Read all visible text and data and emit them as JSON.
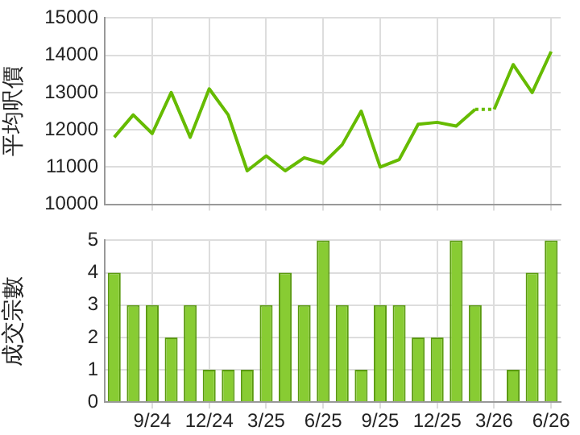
{
  "chart_data": [
    {
      "type": "line",
      "ylabel": "平均呎價",
      "categories": [
        null,
        null,
        null,
        null,
        null,
        null,
        null,
        null,
        null,
        null,
        null,
        null,
        null,
        null,
        null,
        null,
        null,
        null,
        null,
        null,
        null,
        null,
        null,
        null
      ],
      "series": [
        {
          "color": "#66bb00",
          "values": [
            11800,
            12400,
            11900,
            13000,
            11800,
            13100,
            12400,
            10900,
            11300,
            10900,
            11250,
            11100,
            11600,
            12500,
            11000,
            11200,
            12150,
            12200,
            12100,
            12550,
            null,
            null,
            null,
            null
          ]
        },
        {
          "color": "#66bb00",
          "line_style": "dotted",
          "values": [
            null,
            null,
            null,
            null,
            null,
            null,
            null,
            null,
            null,
            null,
            null,
            null,
            null,
            null,
            null,
            null,
            null,
            null,
            null,
            12550,
            12550,
            null,
            null,
            null
          ]
        },
        {
          "color": "#66bb00",
          "values": [
            null,
            null,
            null,
            null,
            null,
            null,
            null,
            null,
            null,
            null,
            null,
            null,
            null,
            null,
            null,
            null,
            null,
            null,
            null,
            null,
            12550,
            13750,
            13000,
            14100
          ]
        }
      ],
      "ylim": [
        10000,
        15000
      ],
      "yticks": [
        10000,
        11000,
        12000,
        13000,
        14000,
        15000
      ],
      "grid": true,
      "tick_labels": "y",
      "marker": "none",
      "line_style": "solid"
    },
    {
      "type": "bar",
      "ylabel": "成交宗數",
      "categories": [
        null,
        null,
        "9/24",
        null,
        null,
        "12/24",
        null,
        null,
        "3/25",
        null,
        null,
        "6/25",
        null,
        null,
        "9/25",
        null,
        null,
        "12/25",
        null,
        null,
        "3/26",
        null,
        null,
        "6/26"
      ],
      "values": [
        4,
        3,
        3,
        2,
        3,
        1,
        1,
        1,
        3,
        4,
        3,
        5,
        3,
        1,
        3,
        3,
        2,
        2,
        5,
        3,
        0,
        1,
        4,
        5
      ],
      "color": "#88cc33",
      "ylim": [
        0,
        5
      ],
      "yticks": [
        0,
        1,
        2,
        3,
        4,
        5
      ],
      "grid": true
    }
  ]
}
